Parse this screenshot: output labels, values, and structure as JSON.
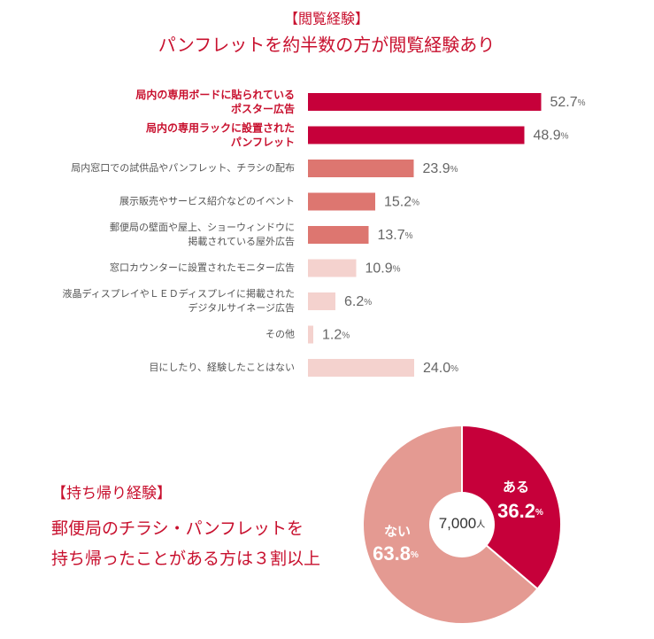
{
  "chart_data": [
    {
      "type": "barh",
      "title": "【閲覧経験】",
      "subtitle": "パンフレットを約半数の方が閲覧経験あり",
      "categories": [
        "局内の専用ボードに貼られている\nポスター広告",
        "局内の専用ラックに設置された\nパンフレット",
        "局内窓口での試供品やパンフレット、チラシの配布",
        "展示販売やサービス紹介などのイベント",
        "郵便局の壁面や屋上、ショーウィンドウに\n掲載されている屋外広告",
        "窓口カウンターに設置されたモニター広告",
        "液晶ディスプレイやＬＥＤディスプレイに掲載された\nデジタルサイネージ広告",
        "その他",
        "目にしたり、経験したことはない"
      ],
      "values": [
        52.7,
        48.9,
        23.9,
        15.2,
        13.7,
        10.9,
        6.2,
        1.2,
        24.0
      ],
      "value_labels": [
        "52.7%",
        "48.9%",
        "23.9%",
        "15.2%",
        "13.7%",
        "10.9%",
        "6.2%",
        "1.2%",
        "24.0%"
      ],
      "colors": [
        "#c6003a",
        "#c6003a",
        "#dd7670",
        "#dd7670",
        "#dd7670",
        "#f4d2ce",
        "#f4d2ce",
        "#f4d2ce",
        "#f4d2ce"
      ]
    },
    {
      "type": "donut",
      "title": "【持ち帰り経験】",
      "subtitle": [
        "郵便局のチラシ・パンフレットを",
        "持ち帰ったことがある方は３割以上"
      ],
      "center_label": "7,000人",
      "categories": [
        "ある",
        "ない"
      ],
      "values": [
        36.2,
        63.8
      ],
      "value_labels": [
        "36.2%",
        "63.8%"
      ],
      "colors": [
        "#c6003a",
        "#e49a92"
      ]
    }
  ]
}
